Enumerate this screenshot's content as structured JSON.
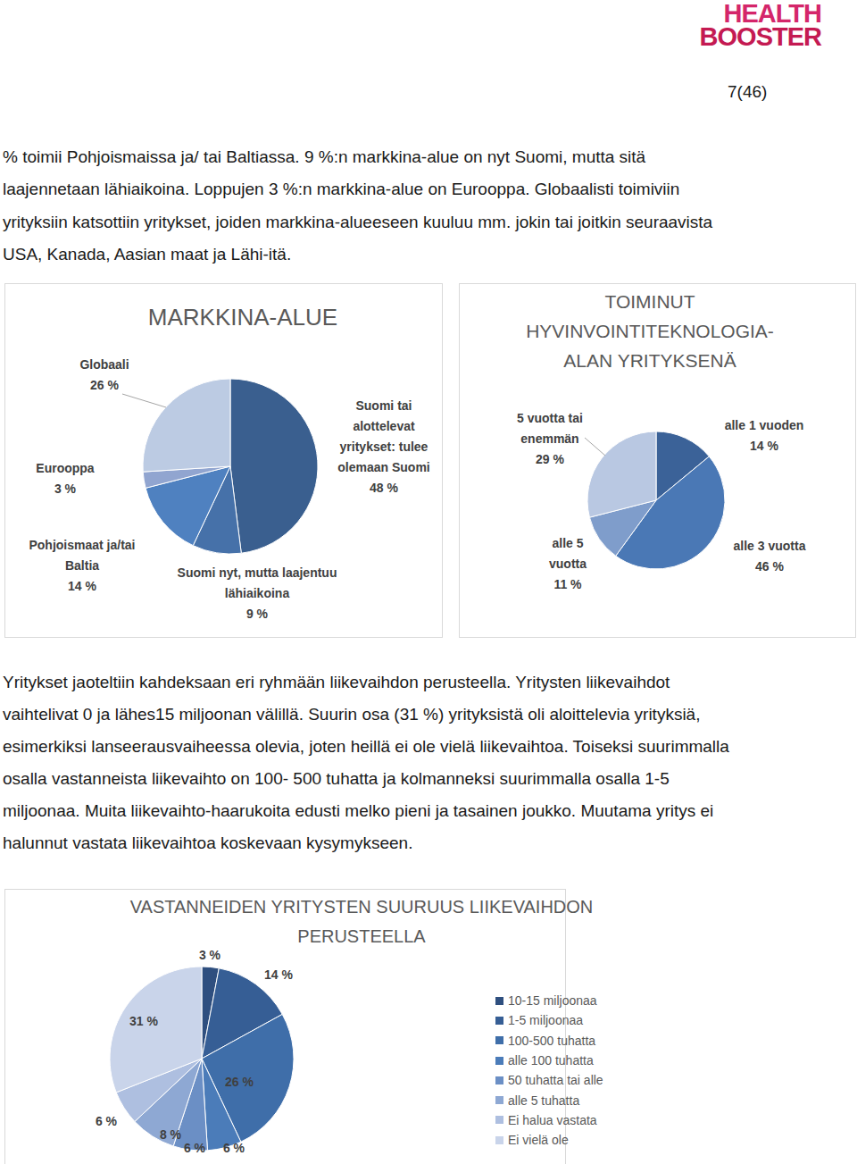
{
  "header": {
    "logo": [
      "HEALTH",
      "BOOSTER"
    ],
    "page": "7(46)"
  },
  "paragraphs": [
    [
      "% toimii Pohjoismaissa ja/ tai Baltiassa. 9 %:n markkina-alue on nyt Suomi, mutta sitä",
      "laajennetaan lähiaikoina. Loppujen 3 %:n markkina-alue on Eurooppa. Globaalisti toimiviin",
      "yrityksiin katsottiin yritykset, joiden markkina-alueeseen kuuluu mm. jokin tai joitkin seuraavista",
      "USA, Kanada, Aasian maat ja Lähi-itä."
    ],
    [
      "Yritykset jaoteltiin kahdeksaan eri ryhmään liikevaihdon perusteella. Yritysten liikevaihdot",
      "vaihtelivat 0 ja lähes15 miljoonan välillä. Suurin osa (31 %) yrityksistä oli aloittelevia yrityksiä,",
      "esimerkiksi lanseerausvaiheessa olevia, joten heillä ei ole vielä liikevaihtoa. Toiseksi suurimmalla",
      "osalla vastanneista liikevaihto on 100- 500 tuhatta ja kolmanneksi suurimmalla osalla 1-5",
      "miljoonaa. Muita liikevaihto-haarukoita edusti melko pieni ja tasainen joukko. Muutama yritys ei",
      "halunnut vastata liikevaihtoa koskevaan kysymykseen."
    ]
  ],
  "chart_data": [
    {
      "type": "pie",
      "title": "MARKKINA-ALUE",
      "categories": [
        "Suomi tai alottelevat yritykset: tulee olemaan Suomi",
        "Suomi nyt, mutta laajentuu lähiaikoina",
        "Pohjoismaat ja/tai Baltia",
        "Eurooppa",
        "Globaali"
      ],
      "values": [
        48,
        9,
        14,
        3,
        26
      ],
      "value_labels": [
        "48 %",
        "9 %",
        "14 %",
        "3 %",
        "26 %"
      ],
      "colors": [
        "#3a5f8f",
        "#4671a9",
        "#4f81c0",
        "#91a5d0",
        "#bccbe3"
      ],
      "data_labels": true
    },
    {
      "type": "pie",
      "title": "TOIMINUT HYVINVOINTITEKNOLOGIA-ALAN YRITYKSENÄ",
      "categories": [
        "alle 1 vuoden",
        "alle 3 vuotta",
        "alle 5 vuotta",
        "5 vuotta tai enemmän"
      ],
      "values": [
        14,
        46,
        11,
        29
      ],
      "value_labels": [
        "14 %",
        "46 %",
        "11 %",
        "29 %"
      ],
      "colors": [
        "#3b6298",
        "#4a78b5",
        "#7f9dcb",
        "#b9c8e2"
      ],
      "data_labels": true
    },
    {
      "type": "pie",
      "title": "VASTANNEIDEN YRITYSTEN SUURUUS LIIKEVAIHDON PERUSTEELLA",
      "categories": [
        "10-15 miljoonaa",
        "1-5 miljoonaa",
        "100-500 tuhatta",
        "alle 100 tuhatta",
        "50 tuhatta tai alle",
        "alle 5 tuhatta",
        "Ei halua vastata",
        "Ei vielä ole"
      ],
      "values": [
        3,
        14,
        26,
        6,
        6,
        8,
        6,
        31
      ],
      "value_labels": [
        "3 %",
        "14 %",
        "26 %",
        "6 %",
        "6 %",
        "8 %",
        "6 %",
        "31 %"
      ],
      "colors": [
        "#2f4f7f",
        "#365e95",
        "#3f6ea9",
        "#4b7cb9",
        "#6b8fc5",
        "#8ea8d3",
        "#aebfe0",
        "#c9d4ea"
      ],
      "legend": "right",
      "data_labels": true
    }
  ]
}
